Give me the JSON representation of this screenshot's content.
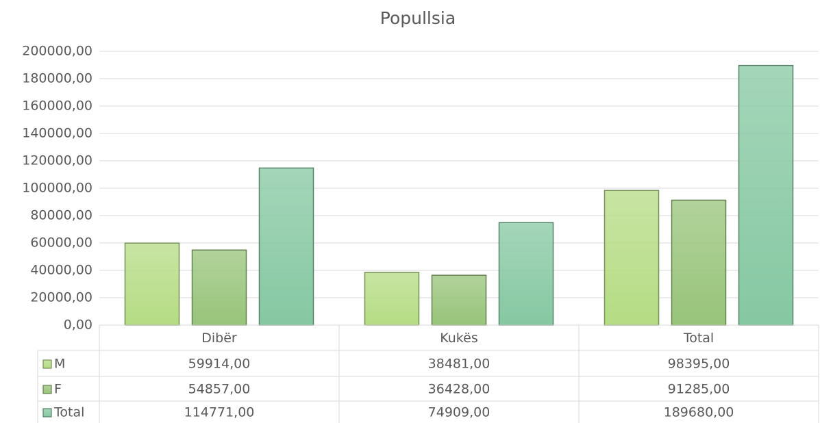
{
  "chart_data": {
    "type": "bar",
    "title": "Popullsia",
    "categories": [
      "Dibër",
      "Kukës",
      "Total"
    ],
    "series": [
      {
        "name": "M",
        "color": "#b5dc84",
        "values": [
          59914,
          38481,
          98395
        ],
        "value_labels": [
          "59914,00",
          "38481,00",
          "98395,00"
        ]
      },
      {
        "name": "F",
        "color": "#98c47a",
        "values": [
          54857,
          36428,
          91285
        ],
        "value_labels": [
          "54857,00",
          "36428,00",
          "91285,00"
        ]
      },
      {
        "name": "Total",
        "color": "#86c8a2",
        "values": [
          114771,
          74909,
          189680
        ],
        "value_labels": [
          "114771,00",
          "74909,00",
          "189680,00"
        ]
      }
    ],
    "ylim": [
      0,
      200000
    ],
    "yticks": [
      {
        "value": 0,
        "label": "0,00"
      },
      {
        "value": 20000,
        "label": "20000,00"
      },
      {
        "value": 40000,
        "label": "40000,00"
      },
      {
        "value": 60000,
        "label": "60000,00"
      },
      {
        "value": 80000,
        "label": "80000,00"
      },
      {
        "value": 100000,
        "label": "100000,00"
      },
      {
        "value": 120000,
        "label": "120000,00"
      },
      {
        "value": 140000,
        "label": "140000,00"
      },
      {
        "value": 160000,
        "label": "160000,00"
      },
      {
        "value": 180000,
        "label": "180000,00"
      },
      {
        "value": 200000,
        "label": "200000,00"
      }
    ],
    "grid": true
  }
}
